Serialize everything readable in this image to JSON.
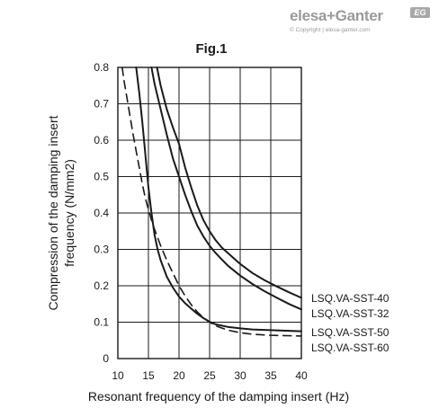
{
  "logo": {
    "brand": "elesa+Ganter",
    "badge": "EG",
    "copyright": "© Copyright | elesa-ganter.com"
  },
  "chart_data": {
    "type": "line",
    "title": "Fig.1",
    "xlabel": "Resonant frequency of the damping insert (Hz)",
    "ylabel_lines": [
      "Compression of the damping insert",
      "frequency (N/mm2)"
    ],
    "xlim": [
      10,
      40
    ],
    "ylim": [
      0,
      0.8
    ],
    "x_ticks": [
      "10",
      "15",
      "20",
      "25",
      "30",
      "35",
      "40"
    ],
    "y_ticks": [
      "0",
      "0.1",
      "0.2",
      "0.3",
      "0.4",
      "0.5",
      "0.6",
      "0.7",
      "0.8"
    ],
    "grid": true,
    "legend_labels": [
      "LSQ.VA-SST-40",
      "LSQ.VA-SST-32",
      "LSQ.VA-SST-50",
      "LSQ.VA-SST-60"
    ],
    "series": [
      {
        "name": "LSQ.VA-SST-40",
        "style": "solid",
        "x": [
          16.4,
          17,
          18,
          19,
          20,
          21,
          22,
          23,
          24,
          25,
          26,
          27,
          28,
          30,
          32,
          34,
          36,
          38,
          40
        ],
        "y": [
          0.8,
          0.75,
          0.685,
          0.635,
          0.59,
          0.525,
          0.47,
          0.42,
          0.38,
          0.35,
          0.325,
          0.305,
          0.29,
          0.26,
          0.235,
          0.215,
          0.198,
          0.182,
          0.167
        ]
      },
      {
        "name": "LSQ.VA-SST-32",
        "style": "solid",
        "x": [
          15.5,
          16,
          17,
          18,
          19,
          20,
          21,
          22,
          23,
          24,
          25,
          26,
          27,
          28,
          30,
          32,
          34,
          36,
          38,
          40
        ],
        "y": [
          0.8,
          0.755,
          0.685,
          0.615,
          0.55,
          0.5,
          0.45,
          0.405,
          0.365,
          0.335,
          0.31,
          0.29,
          0.272,
          0.255,
          0.228,
          0.205,
          0.185,
          0.167,
          0.15,
          0.135
        ]
      },
      {
        "name": "LSQ.VA-SST-50",
        "style": "solid",
        "x": [
          13,
          13.5,
          14,
          14.5,
          15,
          15.5,
          16,
          16.5,
          17,
          18,
          19,
          20,
          21,
          22,
          23,
          24,
          25,
          26,
          28,
          30,
          32,
          35,
          40
        ],
        "y": [
          0.8,
          0.73,
          0.65,
          0.56,
          0.47,
          0.4,
          0.34,
          0.3,
          0.27,
          0.225,
          0.195,
          0.17,
          0.152,
          0.137,
          0.123,
          0.111,
          0.101,
          0.094,
          0.087,
          0.083,
          0.08,
          0.078,
          0.075
        ]
      },
      {
        "name": "LSQ.VA-SST-60",
        "style": "dashed",
        "x": [
          10.7,
          11,
          11.5,
          12,
          12.5,
          13,
          13.5,
          14,
          14.5,
          15,
          15.5,
          16,
          17,
          18,
          19,
          20,
          21,
          22,
          23,
          24,
          25,
          26,
          28,
          30,
          32,
          35,
          40
        ],
        "y": [
          0.8,
          0.765,
          0.715,
          0.665,
          0.615,
          0.57,
          0.525,
          0.48,
          0.44,
          0.41,
          0.38,
          0.355,
          0.31,
          0.27,
          0.235,
          0.2,
          0.172,
          0.148,
          0.128,
          0.112,
          0.1,
          0.09,
          0.078,
          0.071,
          0.067,
          0.064,
          0.062
        ]
      }
    ]
  }
}
